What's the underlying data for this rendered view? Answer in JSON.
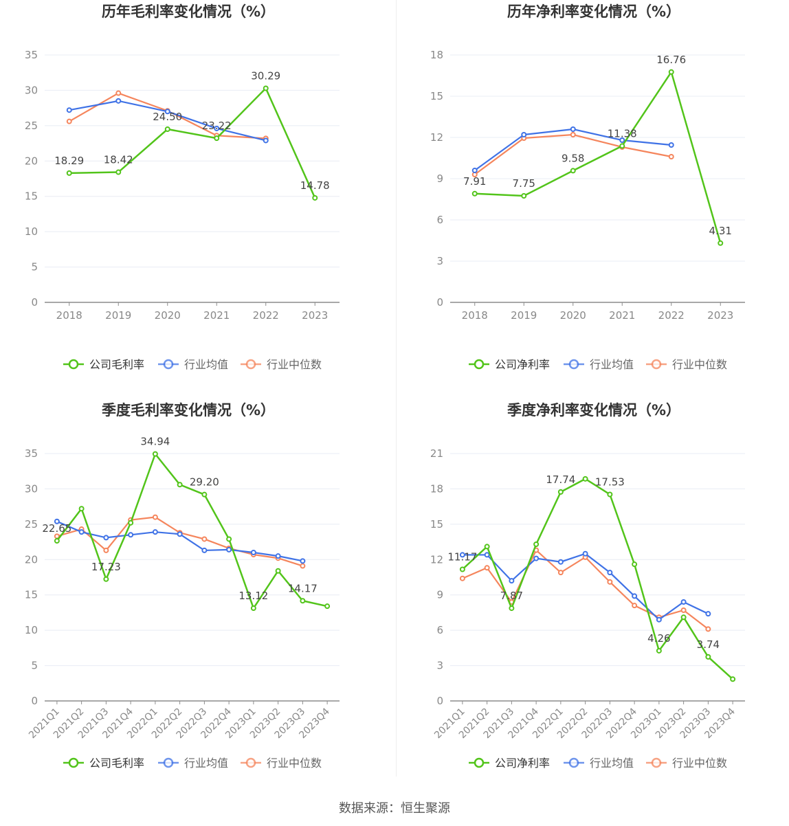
{
  "source_text": "数据来源：恒生聚源",
  "colors": {
    "company": "#52c41a",
    "avg": "#3f72e6",
    "median": "#f5855c",
    "grid": "#e8ecf4",
    "axis": "#8c8c8c",
    "tick": "#888888"
  },
  "chart_data": [
    {
      "type": "line",
      "title": "历年毛利率变化情况（%）",
      "categories": [
        "2018",
        "2019",
        "2020",
        "2021",
        "2022",
        "2023"
      ],
      "ylim": [
        0,
        35
      ],
      "yticks": [
        0,
        5,
        10,
        15,
        20,
        25,
        30,
        35
      ],
      "series": [
        {
          "name": "公司毛利率",
          "values": [
            18.29,
            18.42,
            24.5,
            23.22,
            30.29,
            14.78
          ],
          "labels": [
            "18.29",
            "18.42",
            "24.50",
            "23.22",
            "30.29",
            "14.78"
          ]
        },
        {
          "name": "行业均值",
          "values": [
            27.2,
            28.5,
            27.0,
            24.6,
            22.9,
            null
          ]
        },
        {
          "name": "行业中位数",
          "values": [
            25.6,
            29.6,
            27.1,
            23.6,
            23.2,
            null
          ]
        }
      ],
      "legend": "bottom"
    },
    {
      "type": "line",
      "title": "历年净利率变化情况（%）",
      "categories": [
        "2018",
        "2019",
        "2020",
        "2021",
        "2022",
        "2023"
      ],
      "ylim": [
        0,
        18
      ],
      "yticks": [
        0,
        3,
        6,
        9,
        12,
        15,
        18
      ],
      "series": [
        {
          "name": "公司净利率",
          "values": [
            7.91,
            7.75,
            9.58,
            11.38,
            16.76,
            4.31
          ],
          "labels": [
            "7.91",
            "7.75",
            "9.58",
            "11.38",
            "16.76",
            "4.31"
          ]
        },
        {
          "name": "行业均值",
          "values": [
            9.6,
            12.2,
            12.6,
            11.8,
            11.45,
            null
          ]
        },
        {
          "name": "行业中位数",
          "values": [
            9.3,
            11.95,
            12.2,
            11.3,
            10.6,
            null
          ]
        }
      ],
      "legend": "bottom"
    },
    {
      "type": "line",
      "title": "季度毛利率变化情况（%）",
      "categories": [
        "2021Q1",
        "2021Q2",
        "2021Q3",
        "2021Q4",
        "2022Q1",
        "2022Q2",
        "2022Q3",
        "2022Q4",
        "2023Q1",
        "2023Q2",
        "2023Q3",
        "2023Q4"
      ],
      "ylim": [
        0,
        35
      ],
      "yticks": [
        0,
        5,
        10,
        15,
        20,
        25,
        30,
        35
      ],
      "series": [
        {
          "name": "公司毛利率",
          "values": [
            22.65,
            27.2,
            17.23,
            25.2,
            34.94,
            30.6,
            29.2,
            22.9,
            13.12,
            18.4,
            14.17,
            13.4
          ],
          "labels": [
            "22.65",
            "",
            "17.23",
            "",
            "34.94",
            "",
            "29.20",
            "",
            "13.12",
            "",
            "14.17",
            ""
          ]
        },
        {
          "name": "行业均值",
          "values": [
            25.4,
            23.9,
            23.1,
            23.5,
            23.9,
            23.6,
            21.3,
            21.4,
            21.0,
            20.5,
            19.8,
            null
          ]
        },
        {
          "name": "行业中位数",
          "values": [
            23.3,
            24.3,
            21.3,
            25.6,
            26.0,
            23.8,
            22.9,
            21.6,
            20.7,
            20.2,
            19.1,
            null
          ]
        }
      ],
      "legend": "bottom"
    },
    {
      "type": "line",
      "title": "季度净利率变化情况（%）",
      "categories": [
        "2021Q1",
        "2021Q2",
        "2021Q3",
        "2021Q4",
        "2022Q1",
        "2022Q2",
        "2022Q3",
        "2022Q4",
        "2023Q1",
        "2023Q2",
        "2023Q3",
        "2023Q4"
      ],
      "ylim": [
        0,
        21
      ],
      "yticks": [
        0,
        3,
        6,
        9,
        12,
        15,
        18,
        21
      ],
      "series": [
        {
          "name": "公司净利率",
          "values": [
            11.17,
            13.1,
            7.87,
            13.3,
            17.74,
            18.85,
            17.53,
            11.6,
            4.26,
            7.1,
            3.74,
            1.85
          ],
          "labels": [
            "11.17",
            "",
            "7.87",
            "",
            "17.74",
            "",
            "17.53",
            "",
            "4.26",
            "",
            "3.74",
            ""
          ]
        },
        {
          "name": "行业均值",
          "values": [
            12.4,
            12.4,
            10.2,
            12.1,
            11.8,
            12.5,
            10.9,
            8.9,
            6.9,
            8.4,
            7.4,
            null
          ]
        },
        {
          "name": "行业中位数",
          "values": [
            10.4,
            11.3,
            8.4,
            12.8,
            10.9,
            12.2,
            10.1,
            8.1,
            7.1,
            7.7,
            6.1,
            null
          ]
        }
      ],
      "legend": "bottom"
    }
  ]
}
